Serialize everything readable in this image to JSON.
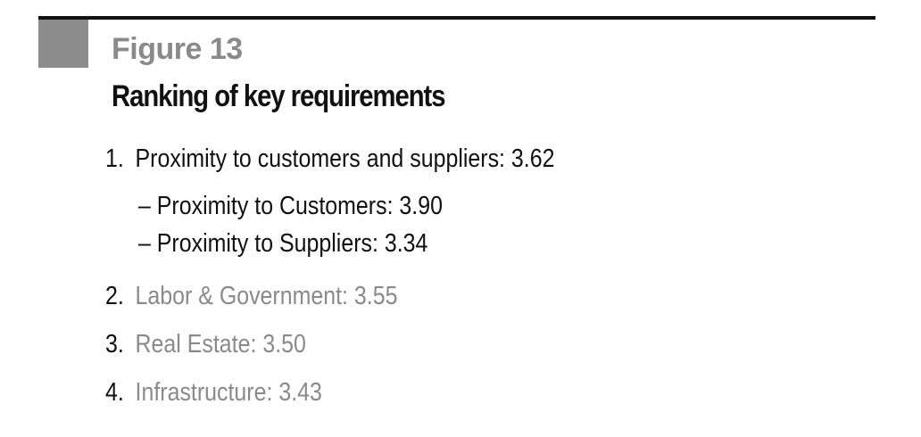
{
  "figure": {
    "label": "Figure 13",
    "title": "Ranking of key requirements"
  },
  "requirements": [
    {
      "number": "1.",
      "text": "Proximity to customers and suppliers: 3.62",
      "sub": [
        {
          "text": "– Proximity to Customers: 3.90"
        },
        {
          "text": "– Proximity to Suppliers: 3.34"
        }
      ]
    },
    {
      "number": "2.",
      "text": "Labor & Government: 3.55"
    },
    {
      "number": "3.",
      "text": "Real Estate: 3.50"
    },
    {
      "number": "4.",
      "text": "Infrastructure: 3.43"
    }
  ],
  "colors": {
    "rule": "#111111",
    "block": "#8c8c8c",
    "label_grey": "#8a8a8a",
    "text_dark": "#111111"
  }
}
